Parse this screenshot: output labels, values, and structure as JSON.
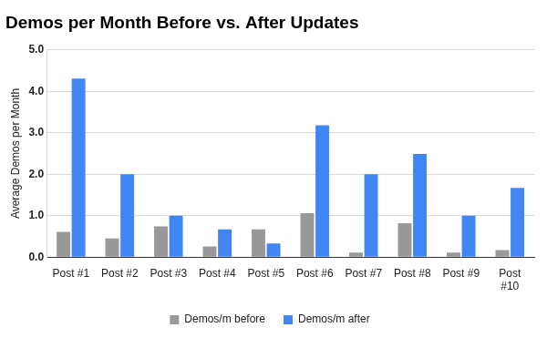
{
  "chart_data": {
    "type": "bar",
    "title": "Demos per Month Before vs. After Updates",
    "y_label": "Average Demos per Month",
    "categories": [
      "Post #1",
      "Post #2",
      "Post #3",
      "Post #4",
      "Post #5",
      "Post #6",
      "Post #7",
      "Post #8",
      "Post #9",
      "Post #10"
    ],
    "series": [
      {
        "name": "Demos/m before",
        "color": "#999999",
        "values": [
          0.61,
          0.45,
          0.74,
          0.26,
          0.67,
          1.06,
          0.11,
          0.82,
          0.11,
          0.17
        ]
      },
      {
        "name": "Demos/m after",
        "color": "#4285f4",
        "values": [
          4.31,
          2.0,
          1.0,
          0.67,
          0.33,
          3.18,
          2.0,
          2.49,
          1.0,
          1.67
        ]
      }
    ],
    "ylim": [
      0,
      5
    ],
    "yticks": [
      {
        "value": 0,
        "label": "0.0"
      },
      {
        "value": 1,
        "label": "1.0"
      },
      {
        "value": 2,
        "label": "2.0"
      },
      {
        "value": 3,
        "label": "3.0"
      },
      {
        "value": 4,
        "label": "4.0"
      },
      {
        "value": 5,
        "label": "5.0"
      }
    ],
    "grid": true,
    "legend": "bottom"
  }
}
